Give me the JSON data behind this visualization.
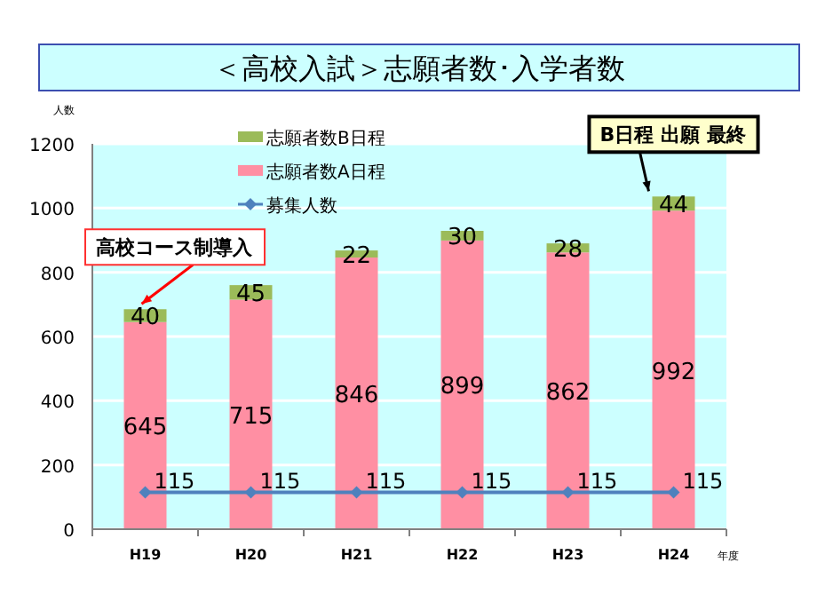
{
  "chart_data": {
    "type": "bar",
    "title": "＜高校入試＞志願者数･入学者数",
    "ylabel": "人数",
    "xlabel": "年度",
    "categories": [
      "H19",
      "H20",
      "H21",
      "H22",
      "H23",
      "H24"
    ],
    "stacked": true,
    "series": [
      {
        "name": "志願者数A日程",
        "color": "#ff8fa3",
        "values": [
          645,
          715,
          846,
          899,
          862,
          992
        ]
      },
      {
        "name": "志願者数B日程",
        "color": "#9bbb59",
        "values": [
          40,
          45,
          22,
          30,
          28,
          44
        ]
      },
      {
        "name": "募集人数",
        "type": "line",
        "color": "#4f81bd",
        "marker": "diamond",
        "values": [
          115,
          115,
          115,
          115,
          115,
          115
        ]
      }
    ],
    "ylim": [
      0,
      1200
    ],
    "yticks": [
      0,
      200,
      400,
      600,
      800,
      1000,
      1200
    ],
    "grid": "y",
    "legend": "top left",
    "data_labels": true,
    "annotations": [
      {
        "text": "B日程 出願 最終",
        "x": "H24",
        "y": 1036
      },
      {
        "text": "高校コース制導入",
        "x": "H19",
        "y": 685
      }
    ]
  }
}
